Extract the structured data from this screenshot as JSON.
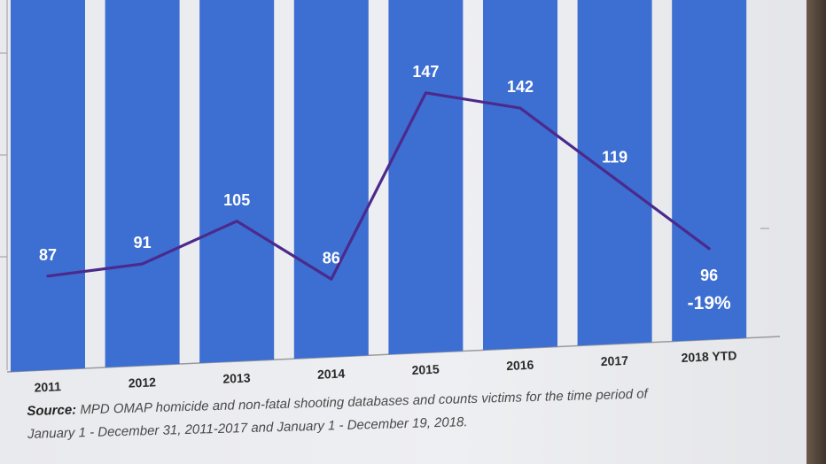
{
  "chart_data": {
    "type": "bar",
    "categories": [
      "2011",
      "2012",
      "2013",
      "2014",
      "2015",
      "2016",
      "2017",
      "2018 YTD"
    ],
    "values": [
      87,
      91,
      105,
      86,
      147,
      142,
      119,
      96
    ],
    "line_series": [
      87,
      91,
      105,
      86,
      147,
      142,
      119,
      96
    ],
    "data_labels": [
      "87",
      "91",
      "105",
      "86",
      "147",
      "142",
      "119",
      "96"
    ],
    "change_label": "-19%",
    "bar_color": "#3d6ed2",
    "line_color": "#4b2a8c",
    "grid": false
  },
  "source": {
    "label": "Source:",
    "line1": "MPD OMAP homicide and non-fatal shooting databases and counts victims for the time period of",
    "line2": "January 1 - December 31, 2011-2017 and January 1 - December 19, 2018."
  },
  "colors": {
    "background": "#ececef",
    "bar": "#3d6ed2",
    "line": "#4b2a8c"
  }
}
